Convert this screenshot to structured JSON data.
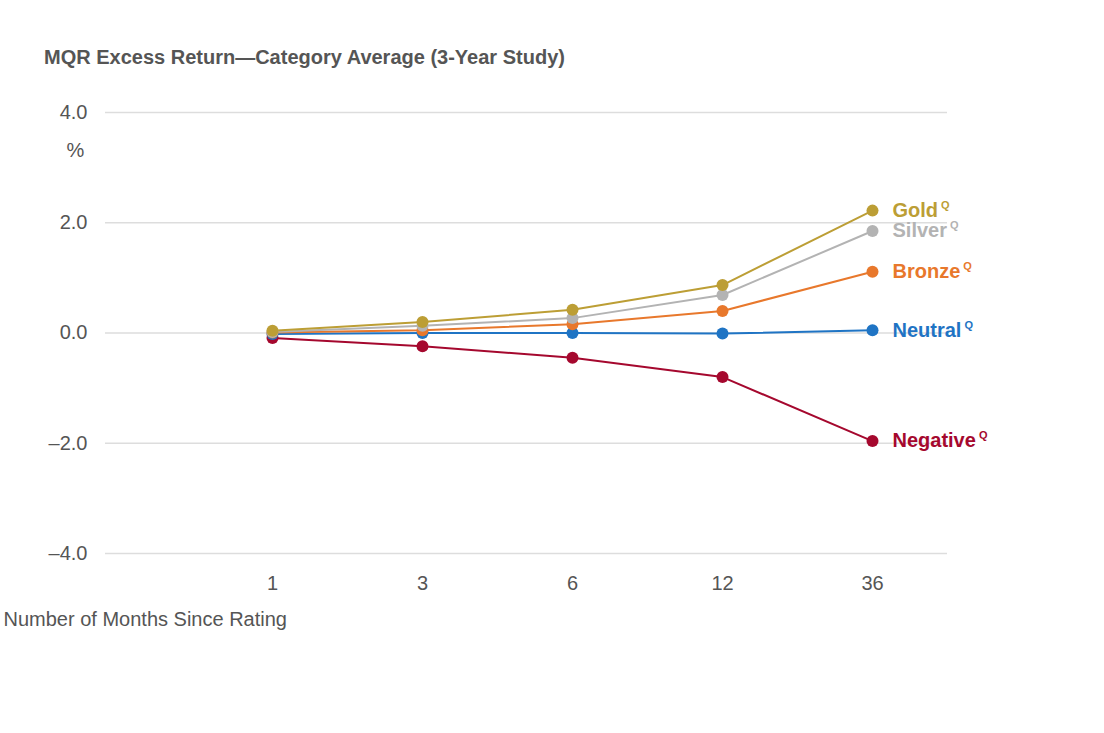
{
  "chart_data": {
    "type": "line",
    "title": "MQR Excess Return—Category Average (3-Year Study)",
    "x_label": "Number of Months Since Rating",
    "y_label": "%",
    "categories": [
      "1",
      "3",
      "6",
      "12",
      "36"
    ],
    "ylim": [
      -4,
      4
    ],
    "yticks": [
      {
        "value": -4,
        "label": "–4.0"
      },
      {
        "value": -2,
        "label": "–2.0"
      },
      {
        "value": 0,
        "label": "0.0"
      },
      {
        "value": 2,
        "label": "2.0"
      },
      {
        "value": 4,
        "label": "4.0"
      }
    ],
    "grid": true,
    "marker": "circle",
    "label_superscript": "Q",
    "series": [
      {
        "name": "Negative",
        "color": "#a5082e",
        "values": [
          -0.09,
          -0.24,
          -0.45,
          -0.8,
          -1.96
        ]
      },
      {
        "name": "Neutral",
        "color": "#1f74c4",
        "values": [
          -0.02,
          0.0,
          0.0,
          -0.01,
          0.05
        ]
      },
      {
        "name": "Bronze",
        "color": "#e8782c",
        "values": [
          0.01,
          0.05,
          0.16,
          0.4,
          1.11
        ]
      },
      {
        "name": "Silver",
        "color": "#b3b3b3",
        "values": [
          0.02,
          0.13,
          0.27,
          0.69,
          1.85
        ]
      },
      {
        "name": "Gold",
        "color": "#bc9e35",
        "values": [
          0.04,
          0.2,
          0.42,
          0.87,
          2.22
        ]
      }
    ]
  }
}
